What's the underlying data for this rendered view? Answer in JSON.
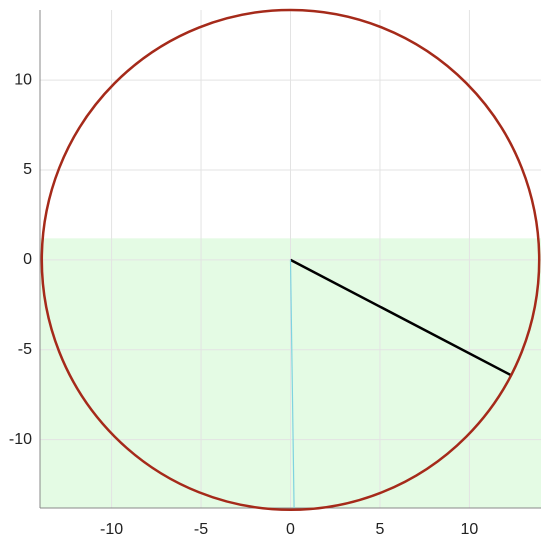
{
  "chart_data": {
    "type": "geometry",
    "xlim": [
      -14,
      14
    ],
    "ylim": [
      -13.8,
      13.9
    ],
    "xticks": [
      -10,
      -5,
      0,
      5,
      10
    ],
    "yticks": [
      -10,
      -5,
      0,
      5,
      10
    ],
    "grid": true,
    "region": {
      "ymax": 1.2,
      "color": "#e4fbe4"
    },
    "circle": {
      "cx": 0,
      "cy": 0,
      "r": 13.9,
      "color": "#a52a1a"
    },
    "segments": [
      {
        "x": [
          0,
          12.3
        ],
        "y": [
          0,
          -6.4
        ],
        "color": "#000000"
      },
      {
        "x": [
          0,
          0.2
        ],
        "y": [
          0,
          -13.8
        ],
        "color": "#7fd3e0"
      }
    ]
  }
}
